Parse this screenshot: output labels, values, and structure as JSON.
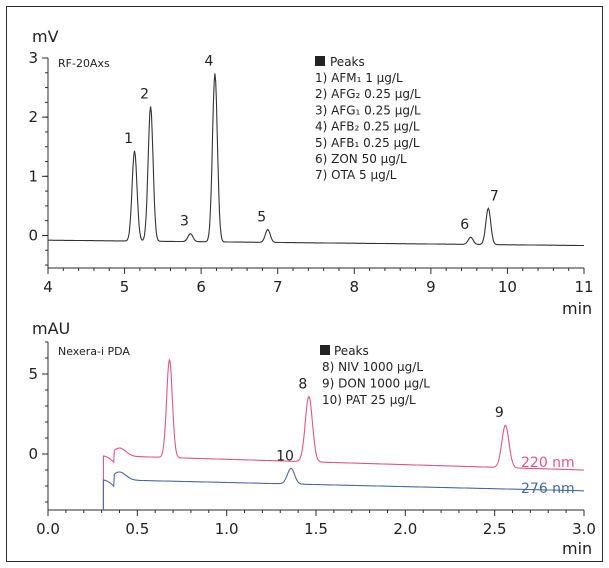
{
  "colors": {
    "axis": "#2b2b2b",
    "trace": "#333333",
    "trace_220": "#e0568b",
    "trace_276": "#4a6aa6"
  },
  "chart_data": [
    {
      "type": "line",
      "detector": "RF-20Axs",
      "ylabel": "mV",
      "xlabel": "min",
      "xlim": [
        4,
        11
      ],
      "ylim": [
        -0.55,
        3
      ],
      "xticks": [
        "4",
        "5",
        "6",
        "7",
        "8",
        "9",
        "10",
        "11"
      ],
      "yticks": [
        "0",
        "1",
        "2",
        "3"
      ],
      "legend_title": "Peaks",
      "legend": [
        "1) AFM₁ 1 µg/L",
        "2) AFG₂ 0.25 µg/L",
        "3) AFG₁ 0.25 µg/L",
        "4) AFB₂ 0.25 µg/L",
        "5) AFB₁ 0.25 µg/L",
        "6) ZON 50 µg/L",
        "7) OTA 5 µg/L"
      ],
      "baseline": -0.08,
      "baseline_end": -0.17,
      "peaks": [
        {
          "label": "1",
          "rt": 5.13,
          "height": 1.43
        },
        {
          "label": "2",
          "rt": 5.34,
          "height": 2.18
        },
        {
          "label": "3",
          "rt": 5.86,
          "height": 0.03
        },
        {
          "label": "4",
          "rt": 6.18,
          "height": 2.74
        },
        {
          "label": "5",
          "rt": 6.87,
          "height": 0.1
        },
        {
          "label": "6",
          "rt": 9.52,
          "height": -0.03
        },
        {
          "label": "7",
          "rt": 9.75,
          "height": 0.46
        }
      ]
    },
    {
      "type": "line",
      "detector": "Nexera-i PDA",
      "ylabel": "mAU",
      "xlabel": "min",
      "xlim": [
        0.0,
        3.0
      ],
      "ylim": [
        -3.5,
        7
      ],
      "xticks": [
        "0.0",
        "0.5",
        "1.0",
        "1.5",
        "2.0",
        "2.5",
        "3.0"
      ],
      "yticks": [
        "0",
        "5"
      ],
      "legend_title": "Peaks",
      "legend": [
        "8) NIV   1000 µg/L",
        "9) DON  1000 µg/L",
        "10) PAT  25 µg/L"
      ],
      "series": [
        {
          "name": "220 nm",
          "baseline": -0.1,
          "baseline_end": -1.0,
          "peaks": [
            {
              "label": "",
              "rt": 0.68,
              "height": 5.9
            },
            {
              "label": "8",
              "rt": 1.46,
              "height": 3.6
            },
            {
              "label": "9",
              "rt": 2.56,
              "height": 1.8
            }
          ]
        },
        {
          "name": "276 nm",
          "baseline": -1.6,
          "baseline_end": -2.3,
          "peaks": [
            {
              "label": "10",
              "rt": 1.36,
              "height": -0.9
            }
          ]
        }
      ]
    }
  ]
}
